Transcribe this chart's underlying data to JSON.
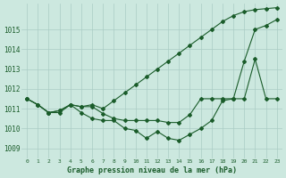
{
  "xlabel": "Graphe pression niveau de la mer (hPa)",
  "bg_color": "#cce8df",
  "grid_color": "#aaccC4",
  "line_color": "#1a5c2a",
  "xlim": [
    -0.5,
    23.5
  ],
  "ylim": [
    1008.5,
    1016.3
  ],
  "yticks": [
    1009,
    1010,
    1011,
    1012,
    1013,
    1014,
    1015
  ],
  "line1_y": [
    1011.5,
    1011.2,
    1010.8,
    1010.8,
    1011.2,
    1010.8,
    1010.5,
    1010.4,
    1010.4,
    1010.0,
    1009.9,
    1009.5,
    1009.85,
    1009.5,
    1009.4,
    1009.7,
    1010.0,
    1010.4,
    1011.4,
    1011.5,
    1013.4,
    1015.0,
    1015.2,
    1015.5
  ],
  "line2_y": [
    1011.5,
    1011.2,
    1010.8,
    1010.9,
    1011.2,
    1011.1,
    1011.2,
    1011.0,
    1011.4,
    1011.8,
    1012.2,
    1012.6,
    1013.0,
    1013.4,
    1013.8,
    1014.2,
    1014.6,
    1015.0,
    1015.4,
    1015.7,
    1015.9,
    1016.0,
    1016.05,
    1016.1
  ],
  "line3_y": [
    1011.5,
    1011.2,
    1010.8,
    1010.9,
    1011.2,
    1011.1,
    1011.1,
    1010.75,
    1010.5,
    1010.4,
    1010.4,
    1010.4,
    1010.4,
    1010.3,
    1010.3,
    1010.7,
    1011.5,
    1011.5,
    1011.5,
    1011.5,
    1011.5,
    1013.5,
    1011.5,
    1011.5
  ],
  "figw": 3.2,
  "figh": 2.0,
  "dpi": 100
}
